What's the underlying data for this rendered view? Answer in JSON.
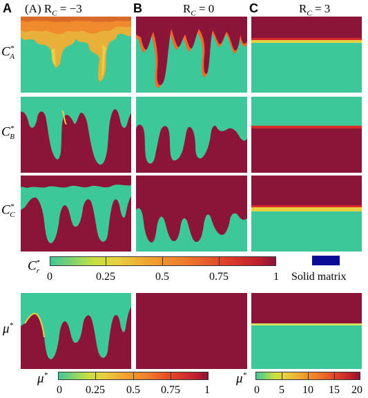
{
  "columns": [
    {
      "letter": "A",
      "prefix": "(A) ",
      "r": "R",
      "sub": "C",
      "eq": " = −3"
    },
    {
      "letter": "B",
      "prefix": "",
      "r": "R",
      "sub": "C",
      "eq": " = 0"
    },
    {
      "letter": "C",
      "prefix": "",
      "r": "R",
      "sub": "C",
      "eq": " = 3"
    }
  ],
  "rows": [
    {
      "base": "C",
      "sup": "*",
      "sub": "A"
    },
    {
      "base": "C",
      "sup": "*",
      "sub": "B"
    },
    {
      "base": "C",
      "sup": "*",
      "sub": "C"
    },
    {
      "base": "μ",
      "sup": "*",
      "sub": ""
    }
  ],
  "colorbar_cr": {
    "label_base": "C",
    "label_sub": "r",
    "label_sup": "*",
    "ticks": [
      "0",
      "0.25",
      "0.5",
      "0.75",
      "1"
    ]
  },
  "solid_matrix": {
    "label": "Solid matrix",
    "color": "#0a0a96"
  },
  "colorbar_mu1": {
    "label_base": "μ",
    "label_sup": "*",
    "ticks": [
      "0",
      "0.25",
      "0.5",
      "0.75",
      "1"
    ]
  },
  "colorbar_mu2": {
    "label_base": "μ",
    "label_sup": "*",
    "ticks": [
      "0",
      "5",
      "10",
      "15",
      "20"
    ]
  },
  "colors": {
    "low": "#3ec89a",
    "high": "#8c1438",
    "yellow": "#e8d040",
    "orange": "#f08a2c",
    "red": "#d82a2a"
  }
}
